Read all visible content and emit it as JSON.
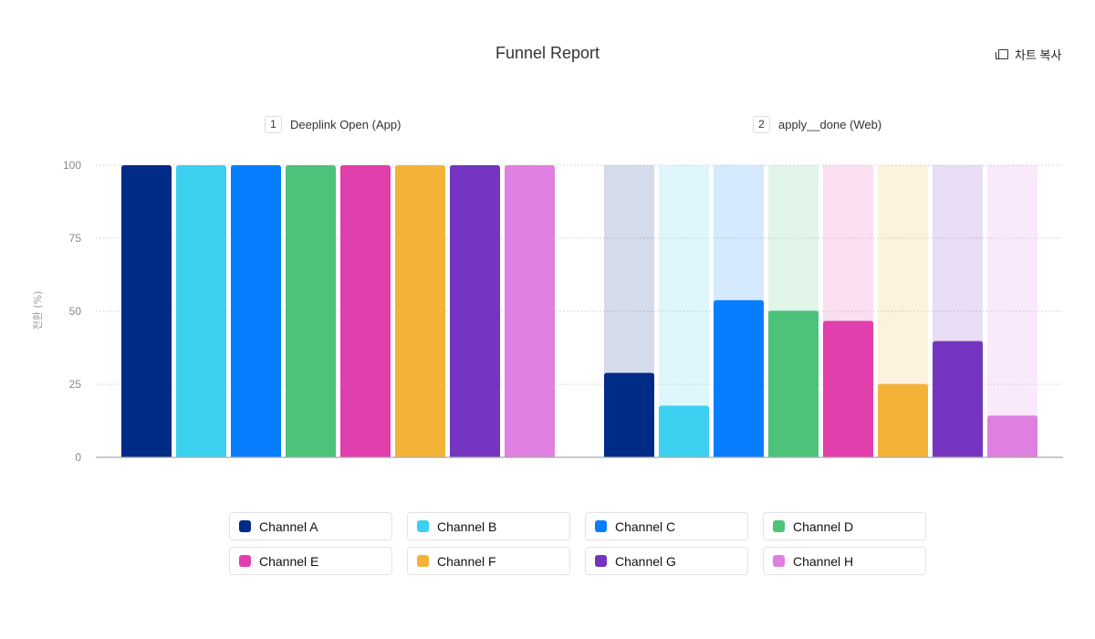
{
  "header": {
    "title": "Funnel Report",
    "copy_label": "차트 복사"
  },
  "chart_data": {
    "type": "bar",
    "title": "Funnel Report",
    "ylabel": "전환 (%)",
    "ylim": [
      0,
      100
    ],
    "yticks": [
      0,
      25,
      50,
      75,
      100
    ],
    "grid": true,
    "legend_placement": "bottom",
    "categories": [
      {
        "num": "1",
        "label": "Deeplink Open (App)"
      },
      {
        "num": "2",
        "label": "apply__done (Web)"
      }
    ],
    "series": [
      {
        "name": "Channel A",
        "color": "#002b87",
        "values": [
          100,
          28.9
        ]
      },
      {
        "name": "Channel B",
        "color": "#3bd0f0",
        "values": [
          100,
          17.7
        ]
      },
      {
        "name": "Channel C",
        "color": "#077eff",
        "values": [
          100,
          53.8
        ]
      },
      {
        "name": "Channel D",
        "color": "#4cc27b",
        "values": [
          100,
          50.2
        ]
      },
      {
        "name": "Channel E",
        "color": "#e13fab",
        "values": [
          100,
          46.7
        ]
      },
      {
        "name": "Channel F",
        "color": "#f4b337",
        "values": [
          100,
          25.1
        ]
      },
      {
        "name": "Channel G",
        "color": "#7535c0",
        "values": [
          100,
          39.8
        ]
      },
      {
        "name": "Channel H",
        "color": "#df7fe0",
        "values": [
          100,
          14.3
        ]
      }
    ]
  }
}
